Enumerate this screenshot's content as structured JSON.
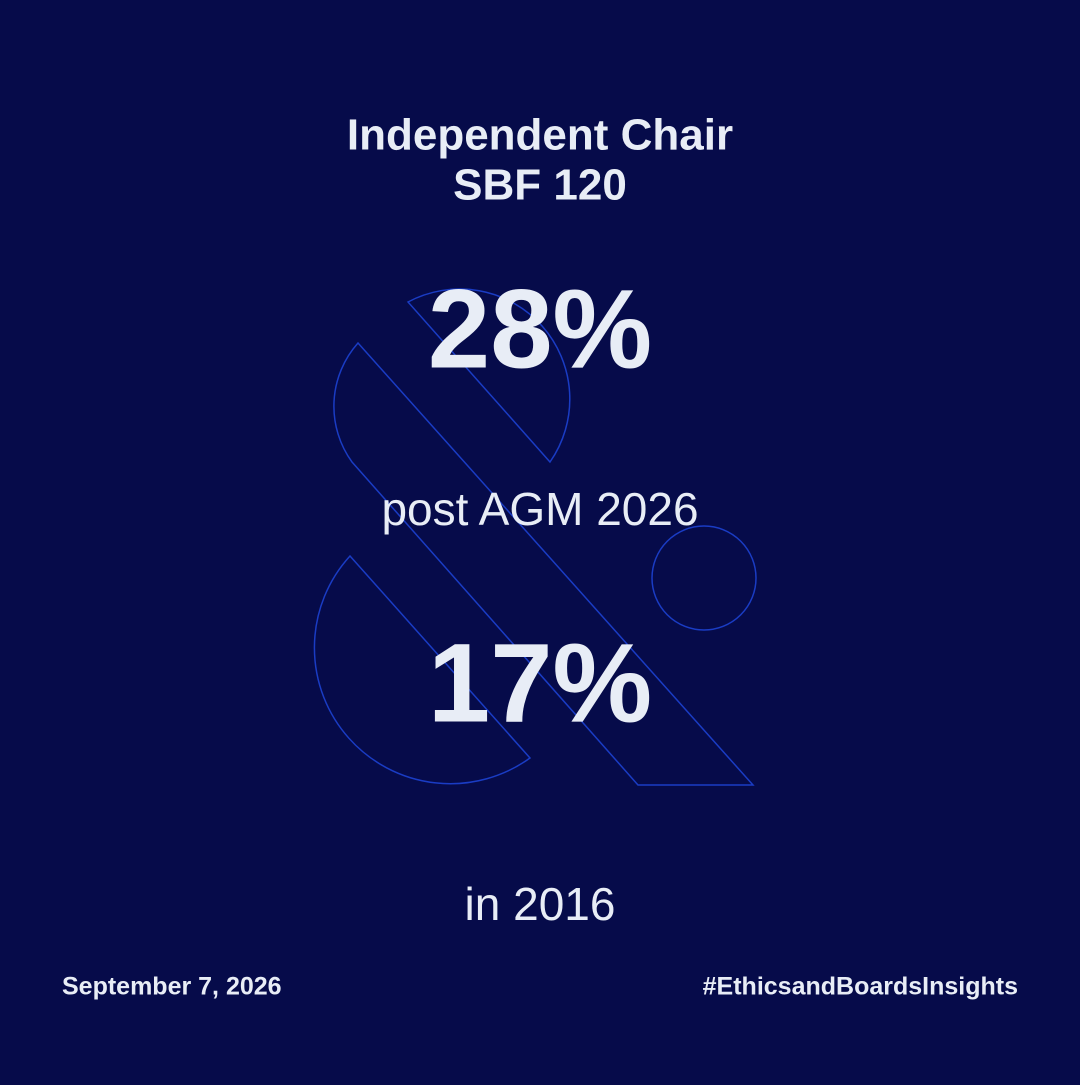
{
  "header": {
    "title": [
      "Independent Chair",
      "SBF 120"
    ]
  },
  "stats": [
    {
      "value": "28%",
      "caption": "post AGM 2026"
    },
    {
      "value": "17%",
      "caption": "in 2016"
    }
  ],
  "footer": {
    "date": "September 7, 2026",
    "hashtag": "#EthicsandBoardsInsights"
  }
}
